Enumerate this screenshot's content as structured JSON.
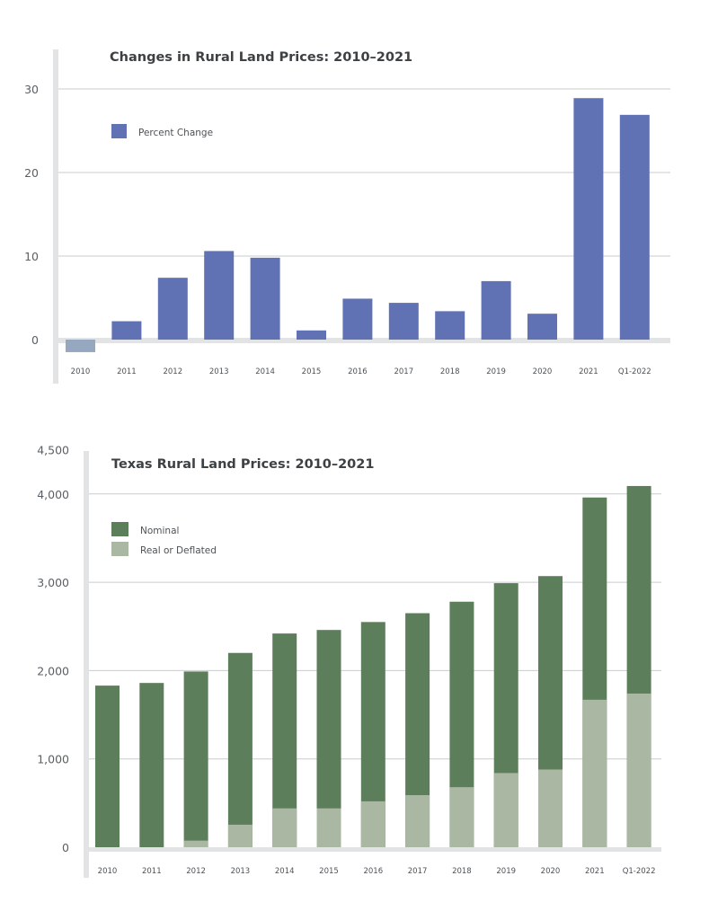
{
  "chart_data": [
    {
      "type": "bar",
      "title": "Changes in Rural Land Prices: 2010–2021",
      "categories": [
        "2010",
        "2011",
        "2012",
        "2013",
        "2014",
        "2015",
        "2016",
        "2017",
        "2018",
        "2019",
        "2020",
        "2021",
        "Q1-2022"
      ],
      "series": [
        {
          "name": "Percent Change",
          "values": [
            -1.5,
            2.2,
            7.4,
            10.6,
            9.8,
            1.1,
            4.9,
            4.4,
            3.4,
            7.0,
            3.1,
            28.9,
            26.9
          ]
        }
      ],
      "ylim": [
        -3,
        35
      ],
      "yticks": [
        0,
        10,
        20,
        30
      ],
      "ytick_labels": [
        "0",
        "10",
        "20",
        "30"
      ],
      "grid": true,
      "legend": "top-left",
      "colors": {
        "positive": "#6072b3",
        "negative": "#95a8c0"
      }
    },
    {
      "type": "bar",
      "title": "Texas Rural Land Prices: 2010–2021",
      "categories": [
        "2010",
        "2011",
        "2012",
        "2013",
        "2014",
        "2015",
        "2016",
        "2017",
        "2018",
        "2019",
        "2020",
        "2021",
        "Q1-2022"
      ],
      "series": [
        {
          "name": "Nominal",
          "values": [
            1830,
            1860,
            1990,
            2200,
            2420,
            2460,
            2550,
            2650,
            2780,
            2990,
            3070,
            3960,
            4090
          ]
        },
        {
          "name": "Real or Deflated",
          "values": [
            0,
            0,
            75,
            255,
            440,
            440,
            520,
            590,
            680,
            840,
            880,
            1670,
            1740
          ]
        }
      ],
      "ylim": [
        0,
        4500
      ],
      "yticks": [
        0,
        1000,
        2000,
        3000,
        4000,
        4500
      ],
      "ytick_labels": [
        "0",
        "1,000",
        "2,000",
        "3,000",
        "4,000",
        "4,500"
      ],
      "grid": true,
      "legend": "top-left",
      "colors": {
        "Nominal": "#5d7e5b",
        "Real or Deflated": "#aab7a2"
      }
    }
  ]
}
